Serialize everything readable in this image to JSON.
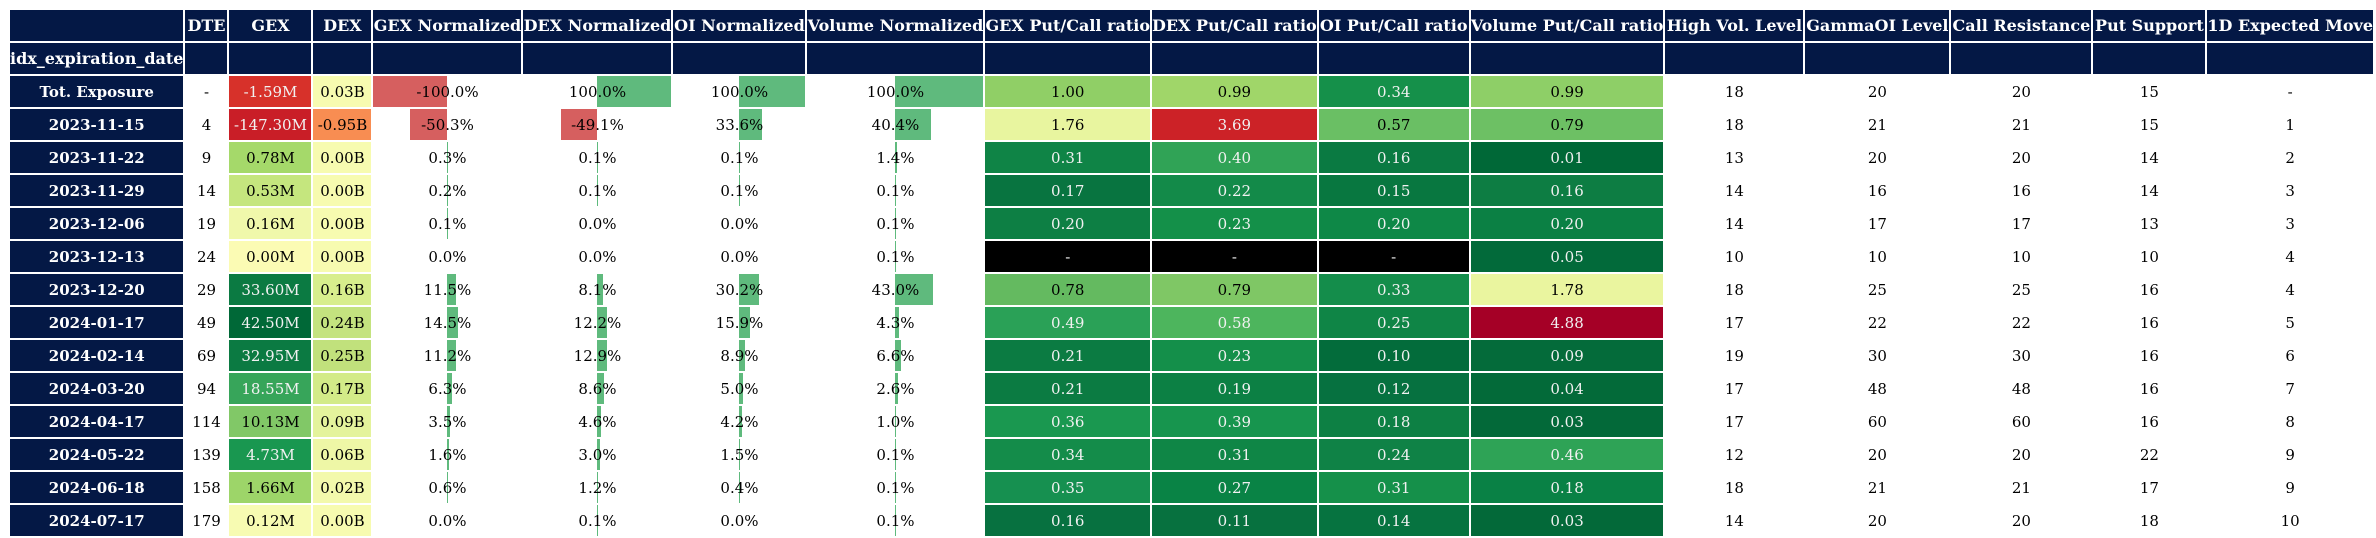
{
  "table": {
    "index_name": "idx_expiration_date",
    "columns": [
      "DTE",
      "GEX",
      "DEX",
      "GEX Normalized",
      "DEX Normalized",
      "OI Normalized",
      "Volume Normalized",
      "GEX Put/Call ratio",
      "DEX Put/Call ratio",
      "OI Put/Call ratio",
      "Volume Put/Call ratio",
      "High Vol. Level",
      "GammaOI Level",
      "Call Resistance",
      "Put Support",
      "1D Expected Move"
    ],
    "rows": [
      [
        "Tot. Exposure",
        "-",
        "-1.59M",
        "0.03B",
        "-100.0%",
        "100.0%",
        "100.0%",
        "100.0%",
        "1.00",
        "0.99",
        "0.34",
        "0.99",
        "18",
        "20",
        "20",
        "15",
        "-"
      ],
      [
        "2023-11-15",
        "4",
        "-147.30M",
        "-0.95B",
        "-50.3%",
        "-49.1%",
        "33.6%",
        "40.4%",
        "1.76",
        "3.69",
        "0.57",
        "0.79",
        "18",
        "21",
        "21",
        "15",
        "1"
      ],
      [
        "2023-11-22",
        "9",
        "0.78M",
        "0.00B",
        "0.3%",
        "0.1%",
        "0.1%",
        "1.4%",
        "0.31",
        "0.40",
        "0.16",
        "0.01",
        "13",
        "20",
        "20",
        "14",
        "2"
      ],
      [
        "2023-11-29",
        "14",
        "0.53M",
        "0.00B",
        "0.2%",
        "0.1%",
        "0.1%",
        "0.1%",
        "0.17",
        "0.22",
        "0.15",
        "0.16",
        "14",
        "16",
        "16",
        "14",
        "3"
      ],
      [
        "2023-12-06",
        "19",
        "0.16M",
        "0.00B",
        "0.1%",
        "0.0%",
        "0.0%",
        "0.1%",
        "0.20",
        "0.23",
        "0.20",
        "0.20",
        "14",
        "17",
        "17",
        "13",
        "3"
      ],
      [
        "2023-12-13",
        "24",
        "0.00M",
        "0.00B",
        "0.0%",
        "0.0%",
        "0.0%",
        "0.1%",
        "-",
        "-",
        "-",
        "0.05",
        "10",
        "10",
        "10",
        "10",
        "4"
      ],
      [
        "2023-12-20",
        "29",
        "33.60M",
        "0.16B",
        "11.5%",
        "8.1%",
        "30.2%",
        "43.0%",
        "0.78",
        "0.79",
        "0.33",
        "1.78",
        "18",
        "25",
        "25",
        "16",
        "4"
      ],
      [
        "2024-01-17",
        "49",
        "42.50M",
        "0.24B",
        "14.5%",
        "12.2%",
        "15.9%",
        "4.3%",
        "0.49",
        "0.58",
        "0.25",
        "4.88",
        "17",
        "22",
        "22",
        "16",
        "5"
      ],
      [
        "2024-02-14",
        "69",
        "32.95M",
        "0.25B",
        "11.2%",
        "12.9%",
        "8.9%",
        "6.6%",
        "0.21",
        "0.23",
        "0.10",
        "0.09",
        "19",
        "30",
        "30",
        "16",
        "6"
      ],
      [
        "2024-03-20",
        "94",
        "18.55M",
        "0.17B",
        "6.3%",
        "8.6%",
        "5.0%",
        "2.6%",
        "0.21",
        "0.19",
        "0.12",
        "0.04",
        "17",
        "48",
        "48",
        "16",
        "7"
      ],
      [
        "2024-04-17",
        "114",
        "10.13M",
        "0.09B",
        "3.5%",
        "4.6%",
        "4.2%",
        "1.0%",
        "0.36",
        "0.39",
        "0.18",
        "0.03",
        "17",
        "60",
        "60",
        "16",
        "8"
      ],
      [
        "2024-05-22",
        "139",
        "4.73M",
        "0.06B",
        "1.6%",
        "3.0%",
        "1.5%",
        "0.1%",
        "0.34",
        "0.31",
        "0.24",
        "0.46",
        "12",
        "20",
        "20",
        "22",
        "9"
      ],
      [
        "2024-06-18",
        "158",
        "1.66M",
        "0.02B",
        "0.6%",
        "1.2%",
        "0.4%",
        "0.1%",
        "0.35",
        "0.27",
        "0.31",
        "0.18",
        "18",
        "21",
        "21",
        "17",
        "9"
      ],
      [
        "2024-07-17",
        "179",
        "0.12M",
        "0.00B",
        "0.0%",
        "0.1%",
        "0.0%",
        "0.1%",
        "0.16",
        "0.11",
        "0.14",
        "0.03",
        "14",
        "20",
        "20",
        "18",
        "10"
      ]
    ],
    "cell_colors": {
      "GEX": [
        "#d7312a",
        "#c91e27",
        "#a5d96a",
        "#c5e67e",
        "#f0f8ab",
        "#fbfbb4",
        "#0b7a42",
        "#006837",
        "#0b7a42",
        "#37a55a",
        "#81c867",
        "#199750",
        "#9dd569",
        "#f7fbb2"
      ],
      "DEX": [
        "#f7fbb0",
        "#f88d52",
        "#f7fbb0",
        "#f7fbb0",
        "#f7fbb0",
        "#f7fbb0",
        "#d8ee8d",
        "#c4e37f",
        "#c1e17c",
        "#d3eb88",
        "#e4f39c",
        "#eef7a6",
        "#f3f9ac",
        "#f7fbb0"
      ],
      "GEX Put/Call ratio": [
        "#90cf66",
        "#e8f59f",
        "#0f8446",
        "#087440",
        "#0d7f44",
        "#000000",
        "#64ba60",
        "#2aa157",
        "#0b7b42",
        "#0b7b42",
        "#1a9850",
        "#148c4a",
        "#169050",
        "#077140"
      ],
      "DEX Put/Call ratio": [
        "#a0d669",
        "#cc2227",
        "#30a356",
        "#138a49",
        "#149049",
        "#000000",
        "#7fc765",
        "#4db55d",
        "#148f4a",
        "#0c8044",
        "#17954e",
        "#0f8646",
        "#098345",
        "#07713f"
      ],
      "OI Put/Call ratio": [
        "#15904a",
        "#6abf64",
        "#0a7a42",
        "#087740",
        "#0e8847",
        "#000000",
        "#148d4b",
        "#0f8546",
        "#036c3b",
        "#067140",
        "#0d8044",
        "#0f8246",
        "#15904a",
        "#067340"
      ],
      "Volume Put/Call ratio": [
        "#8ecf67",
        "#6dc064",
        "#006837",
        "#0d7d43",
        "#0b8044",
        "#026a3a",
        "#eaf59f",
        "#a50026",
        "#046b3a",
        "#036a39",
        "#036939",
        "#2ea356",
        "#098145",
        "#036939"
      ]
    },
    "bar_fraction": {
      "GEX Normalized": [
        -1.0,
        -0.503,
        0.003,
        0.002,
        0.001,
        0.0,
        0.115,
        0.145,
        0.112,
        0.063,
        0.035,
        0.016,
        0.006,
        0.0
      ],
      "DEX Normalized": [
        1.0,
        -0.491,
        0.001,
        0.001,
        0.0,
        0.0,
        0.081,
        0.122,
        0.129,
        0.086,
        0.046,
        0.03,
        0.012,
        0.001
      ],
      "OI Normalized": [
        1.0,
        0.336,
        0.001,
        0.001,
        0.0,
        0.0,
        0.302,
        0.159,
        0.089,
        0.05,
        0.042,
        0.015,
        0.004,
        0.0
      ],
      "Volume Normalized": [
        1.0,
        0.404,
        0.014,
        0.001,
        0.001,
        0.001,
        0.43,
        0.043,
        0.066,
        0.026,
        0.01,
        0.001,
        0.001,
        0.001
      ]
    },
    "bar_colors": {
      "positive": "#5fba7d",
      "negative": "#d65f5f"
    }
  }
}
